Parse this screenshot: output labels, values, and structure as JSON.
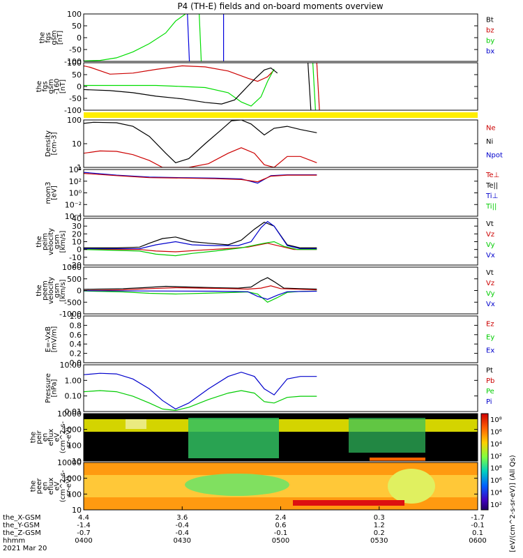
{
  "title": "P4 (TH-E) fields and on-board moments overview",
  "chart_data": [
    {
      "type": "line",
      "panel": "fgs",
      "ylabel": [
        "the",
        "fgs",
        "gsm",
        "[nT]"
      ],
      "ylim": [
        -100,
        100
      ],
      "yticks": [
        "100",
        "50",
        "0",
        "-50",
        "-100"
      ],
      "legend": [
        {
          "label": "Bt",
          "color": "#000000"
        },
        {
          "label": "bz",
          "color": "#cc0000"
        },
        {
          "label": "by",
          "color": "#00cc00"
        },
        {
          "label": "bx",
          "color": "#0000cc"
        }
      ],
      "series": [
        {
          "name": "by",
          "color": "#00dd00",
          "x": [
            0,
            5,
            10,
            15,
            20,
            25,
            28,
            31
          ],
          "y": [
            -98,
            -96,
            -85,
            -60,
            -25,
            20,
            70,
            100
          ]
        },
        {
          "name": "bx",
          "color": "#0000dd",
          "x": [
            31.6,
            32.2
          ],
          "y": [
            100,
            -100
          ]
        },
        {
          "name": "by",
          "color": "#00dd00",
          "x": [
            35.2,
            35.8
          ],
          "y": [
            100,
            -100
          ]
        },
        {
          "name": "bx",
          "color": "#0000dd",
          "x": [
            42.6,
            42.6
          ],
          "y": [
            100,
            -100
          ]
        }
      ]
    },
    {
      "type": "line",
      "panel": "fgs-zoom",
      "ylabel": [
        "the",
        "fgs",
        "gsm",
        "-160",
        "[nT]"
      ],
      "ylim": [
        -120,
        110
      ],
      "yticks": [
        "100",
        "50",
        "0",
        "-50",
        "-100"
      ],
      "series": [
        {
          "name": "bz",
          "color": "#cc0000",
          "x": [
            0,
            2,
            8,
            15,
            22,
            30,
            37,
            44,
            50,
            53,
            56,
            58
          ],
          "y": [
            95,
            88,
            55,
            60,
            78,
            95,
            90,
            70,
            35,
            20,
            42,
            75
          ]
        },
        {
          "name": "by",
          "color": "#00dd00",
          "x": [
            0,
            8,
            15,
            22,
            30,
            37,
            44,
            48,
            51,
            54,
            56,
            58
          ],
          "y": [
            0,
            0,
            0,
            0,
            -5,
            -10,
            -35,
            -80,
            -100,
            -55,
            20,
            80
          ]
        },
        {
          "name": "Bt",
          "color": "#000000",
          "x": [
            0,
            8,
            15,
            22,
            30,
            37,
            42,
            46,
            49,
            52,
            55,
            57,
            59
          ],
          "y": [
            -20,
            -25,
            -35,
            -52,
            -65,
            -82,
            -90,
            -70,
            -20,
            30,
            75,
            85,
            60
          ]
        },
        {
          "name": "Bt",
          "color": "#000000",
          "x": [
            68.3,
            69.2
          ],
          "y": [
            110,
            -120
          ]
        },
        {
          "name": "by",
          "color": "#00dd00",
          "x": [
            69.8,
            70.6
          ],
          "y": [
            110,
            -120
          ]
        },
        {
          "name": "bz",
          "color": "#cc0000",
          "x": [
            71.0,
            71.8
          ],
          "y": [
            110,
            -120
          ]
        }
      ]
    },
    {
      "type": "line",
      "panel": "density",
      "ylabel": [
        "Density",
        "[cm-3]"
      ],
      "yscale": "log",
      "ylim": [
        0.5,
        200
      ],
      "yticks": [
        "100",
        "10",
        "1"
      ],
      "legend": [
        {
          "label": "Ne",
          "color": "#cc0000"
        },
        {
          "label": "Ni",
          "color": "#000000"
        },
        {
          "label": "Npot",
          "color": "#0000cc"
        }
      ],
      "series": [
        {
          "name": "Ni",
          "color": "#000000",
          "x": [
            0,
            3,
            10,
            15,
            20,
            25,
            28,
            32,
            37,
            42,
            45,
            48,
            51,
            55,
            58,
            62,
            66,
            71
          ],
          "y": [
            130,
            150,
            140,
            90,
            25,
            3,
            0.9,
            1.5,
            10,
            60,
            180,
            200,
            120,
            30,
            70,
            90,
            60,
            40
          ]
        },
        {
          "name": "Ne",
          "color": "#cc0000",
          "x": [
            0,
            5,
            10,
            15,
            20,
            24,
            28,
            32,
            38,
            44,
            48,
            52,
            55,
            58,
            62,
            66,
            71
          ],
          "y": [
            3,
            4,
            3.8,
            2.5,
            1.2,
            0.5,
            0.3,
            0.3,
            0.8,
            3,
            6,
            3,
            0.7,
            0.3,
            2,
            2,
            0.9
          ]
        }
      ]
    },
    {
      "type": "line",
      "panel": "moments",
      "ylabel": [
        "mom3",
        "[eV]"
      ],
      "yscale": "log",
      "ylim": [
        1e-05,
        80000
      ],
      "yticks": [
        "10⁴",
        "10²",
        "10⁰",
        "10⁻²",
        "10⁻⁴"
      ],
      "legend": [
        {
          "label": "Te⊥",
          "color": "#cc0000"
        },
        {
          "label": "Te||",
          "color": "#000000"
        },
        {
          "label": "Ti⊥",
          "color": "#0000cc"
        },
        {
          "label": "Ti||",
          "color": "#00cc00"
        }
      ],
      "series": [
        {
          "name": "Ti⊥",
          "color": "#0000cc",
          "x": [
            0,
            10,
            20,
            30,
            40,
            48,
            53,
            57,
            62,
            71
          ],
          "y": [
            20000,
            5000,
            2000,
            1500,
            1200,
            800,
            100,
            4000,
            6000,
            6000
          ]
        },
        {
          "name": "Te⊥",
          "color": "#cc0000",
          "x": [
            0,
            10,
            20,
            30,
            40,
            48,
            53,
            57,
            62,
            71
          ],
          "y": [
            12000,
            4000,
            1500,
            1200,
            900,
            600,
            200,
            3000,
            5000,
            5000
          ]
        }
      ]
    },
    {
      "type": "line",
      "panel": "ion-velocity",
      "ylabel": [
        "the",
        "peim",
        "velocity",
        "gsm",
        "[km/s]"
      ],
      "ylim": [
        -20,
        40
      ],
      "yticks": [
        "40",
        "30",
        "20",
        "10",
        "0",
        "-10",
        "-20"
      ],
      "legend": [
        {
          "label": "Vt",
          "color": "#000000"
        },
        {
          "label": "Vz",
          "color": "#cc0000"
        },
        {
          "label": "Vy",
          "color": "#00cc00"
        },
        {
          "label": "Vx",
          "color": "#0000cc"
        }
      ],
      "series": [
        {
          "name": "Vt",
          "color": "#000000",
          "x": [
            0,
            10,
            17,
            20,
            24,
            28,
            33,
            38,
            44,
            48,
            52,
            55,
            58,
            62,
            66,
            71
          ],
          "y": [
            2,
            2,
            3,
            8,
            14,
            16,
            10,
            8,
            6,
            12,
            26,
            35,
            30,
            6,
            2,
            2
          ]
        },
        {
          "name": "Vx",
          "color": "#0000cc",
          "x": [
            0,
            17,
            22,
            28,
            33,
            40,
            47,
            51,
            54,
            56,
            58,
            62,
            66,
            71
          ],
          "y": [
            1,
            1,
            6,
            10,
            6,
            5,
            5,
            10,
            28,
            36,
            30,
            5,
            1,
            1
          ]
        },
        {
          "name": "Vz",
          "color": "#cc0000",
          "x": [
            0,
            17,
            22,
            28,
            35,
            43,
            50,
            56,
            60,
            64,
            71
          ],
          "y": [
            0,
            0,
            -2,
            -3,
            -1,
            1,
            3,
            8,
            4,
            0,
            0
          ]
        },
        {
          "name": "Vy",
          "color": "#00cc00",
          "x": [
            0,
            17,
            22,
            28,
            33,
            40,
            48,
            55,
            58,
            61,
            65,
            71
          ],
          "y": [
            0,
            -2,
            -6,
            -8,
            -5,
            -2,
            2,
            8,
            10,
            4,
            0,
            0
          ]
        }
      ]
    },
    {
      "type": "line",
      "panel": "electron-velocity",
      "ylabel": [
        "the",
        "peem",
        "velocity",
        "gsm",
        "[km/s]"
      ],
      "ylim": [
        -1000,
        1000
      ],
      "yticks": [
        "1000",
        "500",
        "0",
        "-500",
        "-1000"
      ],
      "legend": [
        {
          "label": "Vt",
          "color": "#000000"
        },
        {
          "label": "Vz",
          "color": "#cc0000"
        },
        {
          "label": "Vy",
          "color": "#00cc00"
        },
        {
          "label": "Vx",
          "color": "#0000cc"
        }
      ],
      "series": [
        {
          "name": "Vt",
          "color": "#000000",
          "x": [
            0,
            12,
            18,
            25,
            32,
            40,
            47,
            51,
            54,
            56,
            58,
            61,
            66,
            71
          ],
          "y": [
            50,
            80,
            120,
            180,
            150,
            120,
            100,
            150,
            420,
            550,
            380,
            100,
            80,
            60
          ]
        },
        {
          "name": "Vz",
          "color": "#cc0000",
          "x": [
            0,
            12,
            20,
            28,
            36,
            44,
            50,
            54,
            57,
            60,
            66,
            71
          ],
          "y": [
            0,
            30,
            80,
            120,
            100,
            80,
            60,
            100,
            200,
            80,
            50,
            30
          ]
        },
        {
          "name": "Vy",
          "color": "#00cc00",
          "x": [
            0,
            12,
            20,
            28,
            36,
            44,
            50,
            53,
            56,
            59,
            62,
            66,
            71
          ],
          "y": [
            -20,
            -60,
            -120,
            -150,
            -120,
            -90,
            -60,
            -150,
            -500,
            -300,
            -80,
            -40,
            -20
          ]
        },
        {
          "name": "Vx",
          "color": "#0000cc",
          "x": [
            0,
            20,
            40,
            50,
            53,
            56,
            59,
            62,
            71
          ],
          "y": [
            -10,
            -20,
            -30,
            -50,
            -250,
            -380,
            -200,
            -50,
            -30
          ]
        }
      ]
    },
    {
      "type": "line",
      "panel": "efield",
      "ylabel": [
        "E=-VxB",
        "[mV/m]"
      ],
      "ylim": [
        0,
        1
      ],
      "yticks": [
        "1.0",
        "0.8",
        "0.6",
        "0.4",
        "0.2",
        "0.0"
      ],
      "legend": [
        {
          "label": "Ez",
          "color": "#cc0000"
        },
        {
          "label": "Ey",
          "color": "#00cc00"
        },
        {
          "label": "Ex",
          "color": "#0000cc"
        }
      ],
      "series": []
    },
    {
      "type": "line",
      "panel": "pressure",
      "ylabel": [
        "Pressure",
        "[nPa]"
      ],
      "yscale": "log",
      "ylim": [
        0.01,
        20
      ],
      "yticks": [
        "10.00",
        "1.00",
        "0.10",
        "0.01"
      ],
      "legend": [
        {
          "label": "Pt",
          "color": "#000000"
        },
        {
          "label": "Pb",
          "color": "#cc0000"
        },
        {
          "label": "Pe",
          "color": "#00cc00"
        },
        {
          "label": "Pi",
          "color": "#0000cc"
        }
      ],
      "series": [
        {
          "name": "Pi",
          "color": "#0000cc",
          "x": [
            0,
            5,
            10,
            15,
            20,
            24,
            28,
            32,
            38,
            44,
            48,
            52,
            55,
            58,
            62,
            66,
            71
          ],
          "y": [
            4,
            5,
            4.5,
            2,
            0.4,
            0.06,
            0.015,
            0.04,
            0.4,
            3,
            6,
            3,
            0.4,
            0.15,
            2,
            3,
            3
          ]
        },
        {
          "name": "Pe",
          "color": "#00cc00",
          "x": [
            0,
            5,
            10,
            15,
            20,
            24,
            28,
            32,
            38,
            44,
            48,
            52,
            55,
            58,
            62,
            66,
            71
          ],
          "y": [
            0.25,
            0.3,
            0.25,
            0.12,
            0.04,
            0.015,
            0.012,
            0.02,
            0.07,
            0.2,
            0.3,
            0.2,
            0.05,
            0.04,
            0.1,
            0.12,
            0.12
          ]
        }
      ]
    },
    {
      "type": "heatmap",
      "panel": "ion-spectrogram",
      "ylabel": [
        "the",
        "peir",
        "en",
        "eflux",
        "eV",
        "(cm^2-s-",
        "sr-eV)"
      ],
      "yscale": "log",
      "ylim": [
        5,
        20000
      ],
      "yticks": [
        "10000",
        "1000",
        "100",
        "10"
      ]
    },
    {
      "type": "heatmap",
      "panel": "electron-spectrogram",
      "ylabel": [
        "the",
        "peer",
        "en",
        "eflux",
        "eV",
        "(cm^2-s-",
        "sr-eV)"
      ],
      "yscale": "log",
      "ylim": [
        5,
        20000
      ],
      "yticks": [
        "10000",
        "1000",
        "100",
        "10"
      ]
    }
  ],
  "colorbar": {
    "ticks": [
      "10⁸",
      "10⁶",
      "10⁴",
      "10²",
      "10⁸",
      "10⁶",
      "10⁴",
      "10²"
    ],
    "label": "[eV/(cm^2-s-sr-eV)] (All Qs)"
  },
  "xaxis": {
    "rows": [
      {
        "label": "the_X-GSM",
        "values": [
          "4.4",
          "3.6",
          "2.4",
          "0.3",
          "-1.7"
        ]
      },
      {
        "label": "the_Y-GSM",
        "values": [
          "-1.4",
          "-0.4",
          "0.6",
          "1.2",
          "-0.1"
        ]
      },
      {
        "label": "the_Z-GSM",
        "values": [
          "-0.7",
          "-0.4",
          "-0.1",
          "0.2",
          "0.1"
        ]
      },
      {
        "label": "hhmm",
        "values": [
          "0400",
          "0430",
          "0500",
          "0530",
          "0600"
        ]
      }
    ],
    "date": "2021 Mar 20"
  }
}
